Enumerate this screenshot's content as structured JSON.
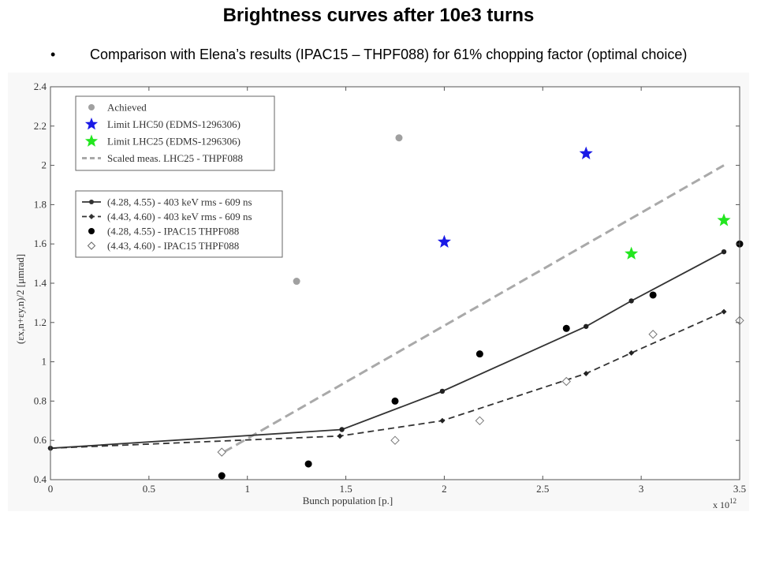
{
  "slide": {
    "title": "Brightness curves after 10e3 turns",
    "bullet_char": "•",
    "bullet": "Comparison with Elena’s results (IPAC15 – THPF088) for 61% chopping factor (optimal choice)"
  },
  "chart_data": {
    "type": "scatter",
    "xlabel": "Bunch population [p.]",
    "x_multiplier": "x 10",
    "x_exponent": "12",
    "ylabel": "(εx,n+εy,n)/2 [μmrad]",
    "xlim": [
      0,
      3.5
    ],
    "ylim": [
      0.4,
      2.4
    ],
    "x_ticks": [
      "0",
      "0.5",
      "1",
      "1.5",
      "2",
      "2.5",
      "3",
      "3.5"
    ],
    "y_ticks": [
      "0.4",
      "0.6",
      "0.8",
      "1",
      "1.2",
      "1.4",
      "1.6",
      "1.8",
      "2",
      "2.2",
      "2.4"
    ],
    "grid": false,
    "legends": [
      {
        "position": "top-left",
        "entries": [
          {
            "label": "Achieved",
            "marker": "circle",
            "color": "#a0a0a0",
            "line": "none"
          },
          {
            "label": "Limit LHC50 (EDMS-1296306)",
            "marker": "star",
            "color": "#1a1ae6",
            "line": "none"
          },
          {
            "label": "Limit LHC25 (EDMS-1296306)",
            "marker": "star",
            "color": "#22e61f",
            "line": "none"
          },
          {
            "label": "Scaled meas. LHC25 - THPF088",
            "marker": "none",
            "color": "#a9a9a9",
            "line": "dashed"
          }
        ]
      },
      {
        "position": "middle-left",
        "entries": [
          {
            "label": "(4.28, 4.55) - 403 keV rms - 609 ns",
            "marker": "dot",
            "color": "#333333",
            "line": "solid"
          },
          {
            "label": "(4.43, 4.60) - 403 keV rms - 609 ns",
            "marker": "smalldiamond",
            "color": "#333333",
            "line": "dashed"
          },
          {
            "label": "(4.28, 4.55) - IPAC15 THPF088",
            "marker": "circle",
            "color": "#000000",
            "line": "none"
          },
          {
            "label": "(4.43, 4.60) - IPAC15 THPF088",
            "marker": "diamond-open",
            "color": "#666666",
            "line": "none"
          }
        ]
      }
    ],
    "series": [
      {
        "name": "Achieved",
        "style": "achieved",
        "points": [
          [
            1.25,
            1.41
          ],
          [
            1.77,
            2.14
          ]
        ]
      },
      {
        "name": "Limit LHC50 (EDMS-1296306)",
        "style": "star_blue",
        "points": [
          [
            2.0,
            1.61
          ],
          [
            2.72,
            2.06
          ]
        ]
      },
      {
        "name": "Limit LHC25 (EDMS-1296306)",
        "style": "star_green",
        "points": [
          [
            2.95,
            1.55
          ],
          [
            3.42,
            1.72
          ]
        ]
      },
      {
        "name": "Scaled meas. LHC25 - THPF088",
        "style": "scaled_dashed",
        "points": [
          [
            0.88,
            0.54
          ],
          [
            3.42,
            2.0
          ]
        ]
      },
      {
        "name": "(4.28, 4.55) - 403 keV rms - 609 ns",
        "style": "solid_dot",
        "points": [
          [
            0.0,
            0.56
          ],
          [
            1.48,
            0.655
          ],
          [
            1.99,
            0.85
          ],
          [
            2.72,
            1.18
          ],
          [
            2.95,
            1.31
          ],
          [
            3.42,
            1.56
          ]
        ]
      },
      {
        "name": "(4.43, 4.60) - 403 keV rms - 609 ns",
        "style": "dashed_diamond",
        "points": [
          [
            0.0,
            0.56
          ],
          [
            1.47,
            0.622
          ],
          [
            1.99,
            0.7
          ],
          [
            2.72,
            0.94
          ],
          [
            2.95,
            1.045
          ],
          [
            3.42,
            1.255
          ]
        ]
      },
      {
        "name": "(4.28, 4.55) - IPAC15 THPF088",
        "style": "ipac_filled",
        "points": [
          [
            0.87,
            0.42
          ],
          [
            1.31,
            0.48
          ],
          [
            1.75,
            0.8
          ],
          [
            2.18,
            1.04
          ],
          [
            2.62,
            1.17
          ],
          [
            3.06,
            1.34
          ],
          [
            3.5,
            1.6
          ]
        ]
      },
      {
        "name": "(4.43, 4.60) - IPAC15 THPF088",
        "style": "ipac_open",
        "points": [
          [
            0.87,
            0.54
          ],
          [
            1.75,
            0.6
          ],
          [
            2.18,
            0.7
          ],
          [
            2.62,
            0.9
          ],
          [
            3.06,
            1.14
          ],
          [
            3.5,
            1.21
          ]
        ]
      }
    ]
  }
}
